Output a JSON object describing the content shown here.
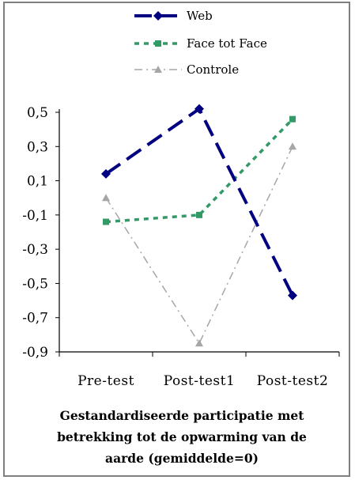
{
  "chart_data": {
    "type": "line",
    "categories": [
      "Pre-test",
      "Post-test1",
      "Post-test2"
    ],
    "series": [
      {
        "name": "Web",
        "values": [
          0.14,
          0.52,
          -0.57
        ],
        "color": "#000080",
        "dash": "dashed",
        "marker": "diamond"
      },
      {
        "name": "Face tot Face",
        "values": [
          -0.14,
          -0.1,
          0.46
        ],
        "color": "#339966",
        "dash": "dotted",
        "marker": "square"
      },
      {
        "name": "Controle",
        "values": [
          0.0,
          -0.85,
          0.3
        ],
        "color": "#a6a6a6",
        "dash": "dash-dot",
        "marker": "triangle"
      }
    ],
    "yticks": [
      "0,5",
      "0,3",
      "0,1",
      "-0,1",
      "-0,3",
      "-0,5",
      "-0,7",
      "-0,9"
    ],
    "ytick_values": [
      0.5,
      0.3,
      0.1,
      -0.1,
      -0.3,
      -0.5,
      -0.7,
      -0.9
    ],
    "ylim": [
      -0.9,
      0.5
    ],
    "legend_position": "top",
    "grid": false
  },
  "caption": {
    "line1": "Gestandardiseerde participatie met",
    "line2": "betrekking tot de opwarming van de",
    "line3": "aarde (gemiddelde=0)"
  }
}
